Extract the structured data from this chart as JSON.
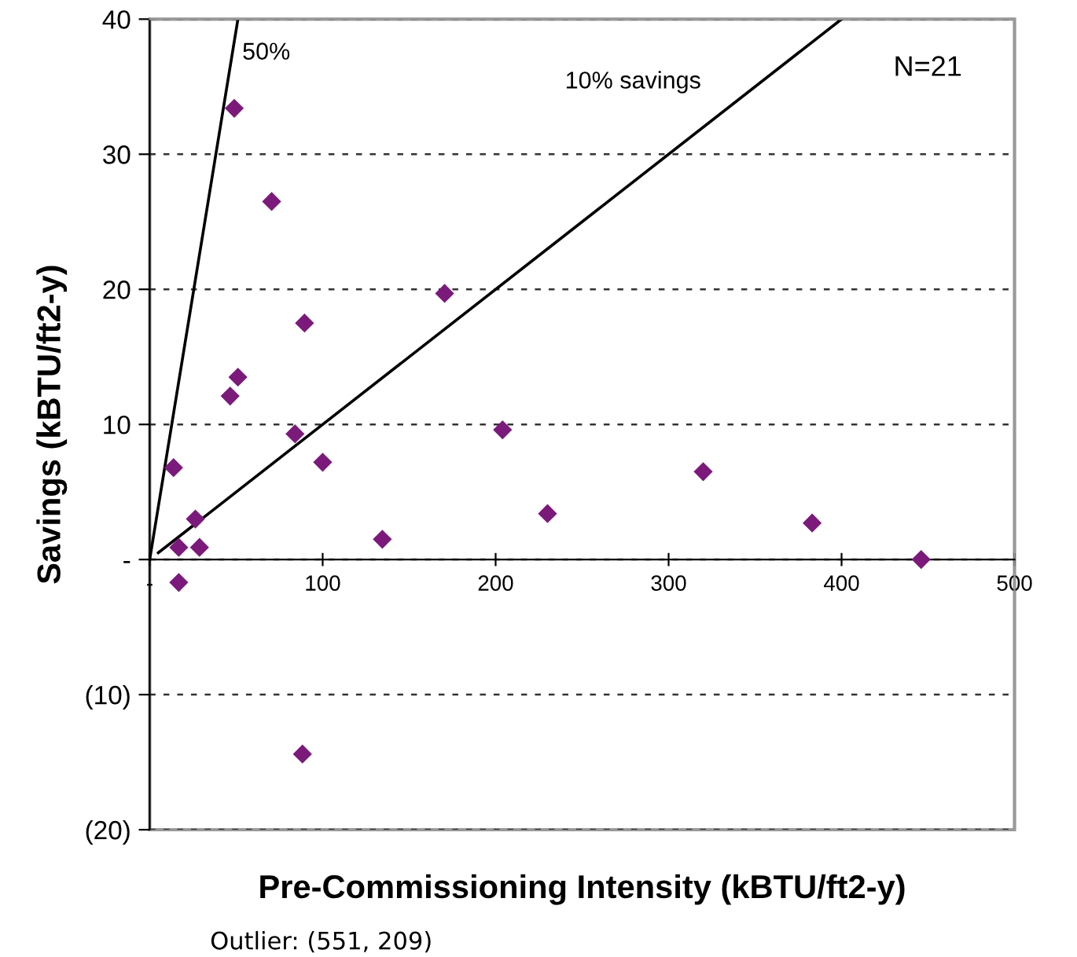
{
  "chart_data": {
    "type": "scatter",
    "xlabel": "Pre-Commissioning Intensity (kBTU/ft2-y)",
    "ylabel": "Savings (kBTU/ft2-y)",
    "series": [
      {
        "color": "#7b1a7b",
        "marker": "diamond",
        "x": [
          48.9,
          70.5,
          89.5,
          51,
          46.5,
          170.5,
          84,
          100,
          204,
          13.8,
          26.4,
          16.8,
          28.8,
          134.5,
          230,
          16.8,
          320,
          383,
          446,
          88.3
        ],
        "values": [
          33.4,
          26.5,
          17.5,
          13.5,
          12.1,
          19.7,
          9.3,
          7.2,
          9.6,
          6.8,
          3.0,
          0.9,
          0.9,
          1.5,
          3.4,
          -1.7,
          6.5,
          2.7,
          0,
          -14.4
        ]
      },
      {
        "type": "line",
        "name": "50%",
        "color": "#000000",
        "x": [
          0,
          51
        ],
        "values": [
          0,
          40
        ]
      },
      {
        "type": "line",
        "name": "10% savings",
        "color": "#000000",
        "x": [
          5,
          400
        ],
        "values": [
          0.5,
          40
        ]
      }
    ],
    "xlim": [
      0,
      500
    ],
    "ylim": [
      -20,
      40
    ],
    "xticks": [
      {
        "value": 0,
        "label": "-"
      },
      100,
      200,
      300,
      400,
      500
    ],
    "yticks": [
      {
        "value": -20,
        "label": "(20)"
      },
      {
        "value": -10,
        "label": "(10)"
      },
      {
        "value": 0,
        "label": "-"
      },
      10,
      20,
      30,
      40
    ],
    "grid": "y",
    "annotations": [
      "N=21",
      "Outlier: (551, 209)"
    ]
  }
}
